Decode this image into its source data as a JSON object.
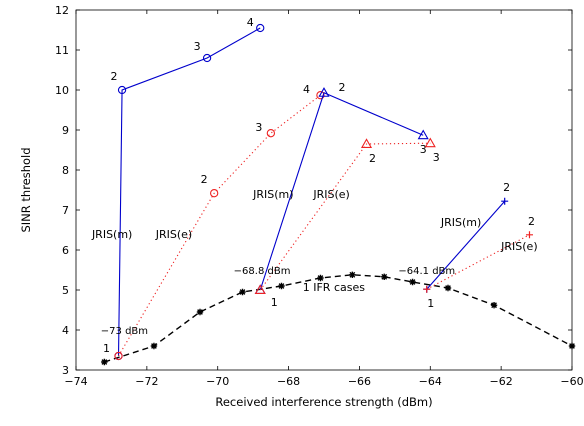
{
  "chart_data": {
    "type": "line",
    "xlabel": "Received interference strength (dBm)",
    "ylabel": "SINR threshold",
    "xlim": [
      -74,
      -60
    ],
    "ylim": [
      3,
      12
    ],
    "xticks": [
      -74,
      -72,
      -70,
      -68,
      -66,
      -64,
      -62,
      -60
    ],
    "yticks": [
      3,
      4,
      5,
      6,
      7,
      8,
      9,
      10,
      11,
      12
    ],
    "grid": false,
    "colors": {
      "m": "#0000cc",
      "e": "#ee2222",
      "base": "#000000"
    },
    "series": [
      {
        "group": "base",
        "style": "dashed",
        "marker": "star",
        "points": [
          {
            "x": -73.2,
            "y": 3.2
          },
          {
            "x": -71.8,
            "y": 3.6
          },
          {
            "x": -70.5,
            "y": 4.45
          },
          {
            "x": -69.3,
            "y": 4.95
          },
          {
            "x": -68.2,
            "y": 5.1
          },
          {
            "x": -67.1,
            "y": 5.3
          },
          {
            "x": -66.2,
            "y": 5.38
          },
          {
            "x": -65.3,
            "y": 5.33
          },
          {
            "x": -64.5,
            "y": 5.2
          },
          {
            "x": -63.5,
            "y": 5.05
          },
          {
            "x": -62.2,
            "y": 4.62
          },
          {
            "x": -60.0,
            "y": 3.6
          }
        ]
      },
      {
        "group": "m",
        "style": "solid",
        "marker": "circle",
        "points": [
          {
            "x": -72.8,
            "y": 3.35,
            "label": "1"
          },
          {
            "x": -72.7,
            "y": 10.0,
            "label": "2"
          },
          {
            "x": -70.3,
            "y": 10.8,
            "label": "3"
          },
          {
            "x": -68.8,
            "y": 11.55,
            "label": "4"
          }
        ]
      },
      {
        "group": "e",
        "style": "dotted",
        "marker": "circle",
        "points": [
          {
            "x": -72.8,
            "y": 3.35
          },
          {
            "x": -70.1,
            "y": 7.42,
            "label": "2"
          },
          {
            "x": -68.5,
            "y": 8.92,
            "label": "3"
          },
          {
            "x": -67.1,
            "y": 9.87,
            "label": "4"
          }
        ]
      },
      {
        "group": "m",
        "style": "solid",
        "marker": "triangle",
        "points": [
          {
            "x": -68.8,
            "y": 5.0,
            "label": "1"
          },
          {
            "x": -67.0,
            "y": 9.93,
            "label": "2"
          },
          {
            "x": -64.2,
            "y": 8.87,
            "label": "3"
          }
        ]
      },
      {
        "group": "e",
        "style": "dotted",
        "marker": "triangle",
        "points": [
          {
            "x": -68.8,
            "y": 5.0
          },
          {
            "x": -65.8,
            "y": 8.65,
            "label": "2"
          },
          {
            "x": -64.0,
            "y": 8.67,
            "label": "3"
          }
        ]
      },
      {
        "group": "m",
        "style": "solid",
        "marker": "plus",
        "points": [
          {
            "x": -64.1,
            "y": 5.02,
            "label": "1"
          },
          {
            "x": -61.9,
            "y": 7.22,
            "label": "2"
          }
        ]
      },
      {
        "group": "e",
        "style": "dotted",
        "marker": "plus",
        "points": [
          {
            "x": -64.1,
            "y": 5.02
          },
          {
            "x": -61.2,
            "y": 6.38,
            "label": "2"
          }
        ]
      }
    ],
    "annotations": [
      {
        "text": "JRIS(m)",
        "x": -73.55,
        "y": 6.3
      },
      {
        "text": "JRIS(e)",
        "x": -71.75,
        "y": 6.3
      },
      {
        "text": "JRIS(m)",
        "x": -69.0,
        "y": 7.3
      },
      {
        "text": "JRIS(e)",
        "x": -67.3,
        "y": 7.3
      },
      {
        "text": "JRIS(m)",
        "x": -63.7,
        "y": 6.6
      },
      {
        "text": "JRIS(e)",
        "x": -62.0,
        "y": 6.0
      },
      {
        "text": "−73 dBm",
        "x": -73.3,
        "y": 3.9,
        "small": true
      },
      {
        "text": "−68.8 dBm",
        "x": -69.55,
        "y": 5.4,
        "small": true
      },
      {
        "text": "−64.1 dBm",
        "x": -64.9,
        "y": 5.4,
        "small": true
      },
      {
        "text": "1 IFR cases",
        "x": -67.6,
        "y": 4.98
      }
    ]
  }
}
